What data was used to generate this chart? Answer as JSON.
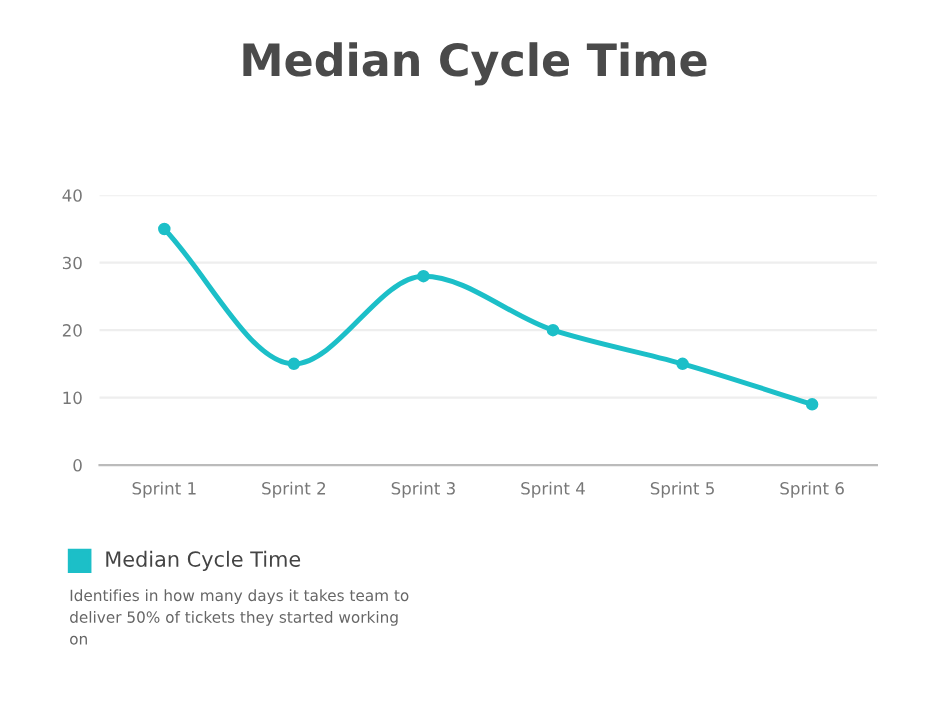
{
  "chart_data": {
    "type": "line",
    "title": "Median Cycle Time",
    "categories": [
      "Sprint 1",
      "Sprint 2",
      "Sprint 3",
      "Sprint 4",
      "Sprint 5",
      "Sprint 6"
    ],
    "series": [
      {
        "name": "Median Cycle Time",
        "color": "#1cbfc8",
        "values": [
          35,
          15,
          28,
          20,
          15,
          9
        ]
      }
    ],
    "ylim": [
      0,
      40
    ],
    "yticks": [
      0,
      10,
      20,
      30,
      40
    ],
    "grid": "y",
    "legend": "bottom left",
    "marker": "circle",
    "annotations": [
      "Identifies in how many days it takes team to deliver 50% of tickets they started working on"
    ]
  }
}
